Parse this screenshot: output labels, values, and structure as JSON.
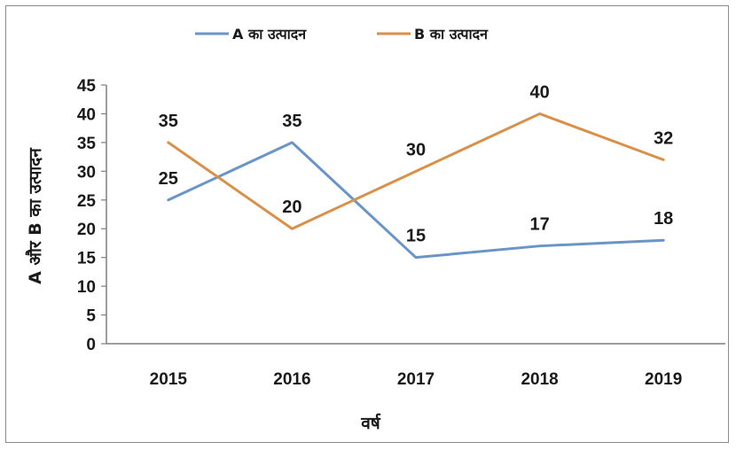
{
  "chart_data": {
    "type": "line",
    "categories": [
      "2015",
      "2016",
      "2017",
      "2018",
      "2019"
    ],
    "series": [
      {
        "name": "A का उत्पादन",
        "values": [
          25,
          35,
          15,
          17,
          18
        ],
        "color": "#6a95c8"
      },
      {
        "name": "B का उत्पादन",
        "values": [
          35,
          20,
          30,
          40,
          32
        ],
        "color": "#d9914a"
      }
    ],
    "title": "",
    "xlabel": "वर्ष",
    "ylabel": "A और B का उत्पादन",
    "ylim": [
      0,
      45
    ],
    "yticks": [
      0,
      5,
      10,
      15,
      20,
      25,
      30,
      35,
      40,
      45
    ],
    "grid": false,
    "legend_position": "top"
  }
}
